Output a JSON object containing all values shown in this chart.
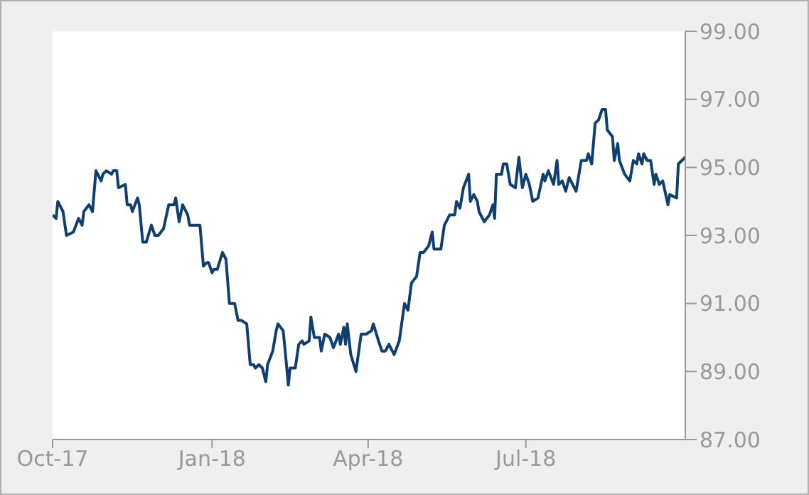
{
  "chart_data": {
    "type": "line",
    "xlim": [
      "2017-10-01",
      "2018-10-01"
    ],
    "xticks": [
      {
        "value": "2017-10-01",
        "label": "Oct-17"
      },
      {
        "value": "2018-01-01",
        "label": "Jan-18"
      },
      {
        "value": "2018-04-01",
        "label": "Apr-18"
      },
      {
        "value": "2018-07-01",
        "label": "Jul-18"
      }
    ],
    "ylim": [
      87,
      99
    ],
    "yticks": [
      {
        "value": 87,
        "label": "87.00"
      },
      {
        "value": 89,
        "label": "89.00"
      },
      {
        "value": 91,
        "label": "91.00"
      },
      {
        "value": 93,
        "label": "93.00"
      },
      {
        "value": 95,
        "label": "95.00"
      },
      {
        "value": 97,
        "label": "97.00"
      },
      {
        "value": 99,
        "label": "99.00"
      }
    ],
    "grid": false,
    "legend": false,
    "marker": "none",
    "line_style": "solid",
    "x": [
      "2017-10-01",
      "2017-10-03",
      "2017-10-04",
      "2017-10-07",
      "2017-10-09",
      "2017-10-13",
      "2017-10-16",
      "2017-10-18",
      "2017-10-19",
      "2017-10-22",
      "2017-10-24",
      "2017-10-26",
      "2017-10-29",
      "2017-10-30",
      "2017-11-01",
      "2017-11-04",
      "2017-11-05",
      "2017-11-07",
      "2017-11-08",
      "2017-11-12",
      "2017-11-13",
      "2017-11-15",
      "2017-11-16",
      "2017-11-19",
      "2017-11-20",
      "2017-11-22",
      "2017-11-24",
      "2017-11-27",
      "2017-11-29",
      "2017-12-01",
      "2017-12-04",
      "2017-12-07",
      "2017-12-10",
      "2017-12-11",
      "2017-12-13",
      "2017-12-15",
      "2017-12-18",
      "2017-12-19",
      "2017-12-23",
      "2017-12-25",
      "2017-12-27",
      "2017-12-29",
      "2017-12-30",
      "2018-01-01",
      "2018-01-02",
      "2018-01-04",
      "2018-01-07",
      "2018-01-09",
      "2018-01-11",
      "2018-01-14",
      "2018-01-16",
      "2018-01-18",
      "2018-01-21",
      "2018-01-23",
      "2018-01-25",
      "2018-01-26",
      "2018-01-28",
      "2018-01-30",
      "2018-02-01",
      "2018-02-02",
      "2018-02-05",
      "2018-02-07",
      "2018-02-08",
      "2018-02-11",
      "2018-02-12",
      "2018-02-14",
      "2018-02-15",
      "2018-02-18",
      "2018-02-20",
      "2018-02-22",
      "2018-02-23",
      "2018-02-26",
      "2018-02-27",
      "2018-03-01",
      "2018-03-04",
      "2018-03-05",
      "2018-03-07",
      "2018-03-10",
      "2018-03-12",
      "2018-03-15",
      "2018-03-16",
      "2018-03-18",
      "2018-03-19",
      "2018-03-20",
      "2018-03-22",
      "2018-03-25",
      "2018-03-28",
      "2018-03-31",
      "2018-04-03",
      "2018-04-04",
      "2018-04-07",
      "2018-04-09",
      "2018-04-11",
      "2018-04-13",
      "2018-04-16",
      "2018-04-19",
      "2018-04-22",
      "2018-04-24",
      "2018-04-26",
      "2018-04-29",
      "2018-05-01",
      "2018-05-03",
      "2018-05-06",
      "2018-05-08",
      "2018-05-09",
      "2018-05-13",
      "2018-05-15",
      "2018-05-18",
      "2018-05-21",
      "2018-05-22",
      "2018-05-24",
      "2018-05-26",
      "2018-05-29",
      "2018-05-30",
      "2018-06-01",
      "2018-06-03",
      "2018-06-04",
      "2018-06-07",
      "2018-06-10",
      "2018-06-12",
      "2018-06-13",
      "2018-06-14",
      "2018-06-17",
      "2018-06-18",
      "2018-06-20",
      "2018-06-22",
      "2018-06-25",
      "2018-06-27",
      "2018-06-29",
      "2018-07-01",
      "2018-07-03",
      "2018-07-05",
      "2018-07-08",
      "2018-07-11",
      "2018-07-12",
      "2018-07-14",
      "2018-07-17",
      "2018-07-19",
      "2018-07-20",
      "2018-07-22",
      "2018-07-24",
      "2018-07-26",
      "2018-07-28",
      "2018-07-30",
      "2018-08-02",
      "2018-08-05",
      "2018-08-06",
      "2018-08-08",
      "2018-08-10",
      "2018-08-12",
      "2018-08-14",
      "2018-08-16",
      "2018-08-17",
      "2018-08-20",
      "2018-08-21",
      "2018-08-23",
      "2018-08-24",
      "2018-08-27",
      "2018-08-30",
      "2018-09-01",
      "2018-09-03",
      "2018-09-04",
      "2018-09-06",
      "2018-09-07",
      "2018-09-09",
      "2018-09-11",
      "2018-09-13",
      "2018-09-14",
      "2018-09-16",
      "2018-09-18",
      "2018-09-21",
      "2018-09-22",
      "2018-09-26",
      "2018-09-27",
      "2018-10-01"
    ],
    "series": [
      {
        "color": "#0e3f70",
        "values": [
          93.6,
          93.5,
          94.0,
          93.7,
          93.0,
          93.1,
          93.5,
          93.3,
          93.7,
          93.9,
          93.7,
          94.9,
          94.6,
          94.8,
          94.9,
          94.8,
          94.9,
          94.9,
          94.4,
          94.5,
          93.9,
          93.9,
          93.7,
          94.1,
          93.9,
          92.8,
          92.8,
          93.3,
          93.0,
          93.0,
          93.2,
          93.9,
          93.9,
          94.1,
          93.4,
          93.9,
          93.6,
          93.3,
          93.3,
          93.3,
          92.1,
          92.2,
          92.2,
          91.9,
          92.0,
          92.0,
          92.5,
          92.3,
          91.0,
          91.0,
          90.5,
          90.5,
          90.4,
          89.2,
          89.2,
          89.1,
          89.2,
          89.1,
          88.7,
          89.2,
          89.6,
          90.2,
          90.4,
          90.2,
          89.7,
          88.6,
          89.1,
          89.1,
          89.8,
          89.9,
          89.8,
          89.9,
          90.6,
          90.0,
          90.0,
          89.6,
          90.1,
          90.0,
          89.7,
          90.1,
          89.8,
          90.3,
          89.8,
          90.4,
          89.5,
          89.0,
          90.1,
          90.1,
          90.2,
          90.4,
          89.9,
          89.6,
          89.6,
          89.8,
          89.5,
          89.9,
          91.0,
          90.8,
          91.6,
          91.8,
          92.5,
          92.5,
          92.7,
          93.1,
          92.6,
          92.6,
          93.3,
          93.6,
          93.6,
          94.0,
          93.8,
          94.4,
          94.8,
          94.0,
          94.2,
          94.0,
          93.7,
          93.4,
          93.6,
          93.9,
          93.5,
          94.8,
          94.8,
          95.1,
          95.1,
          94.5,
          94.4,
          95.3,
          94.4,
          94.8,
          94.5,
          94.0,
          94.1,
          94.8,
          94.6,
          94.9,
          94.5,
          95.2,
          94.5,
          94.6,
          94.3,
          94.7,
          94.5,
          94.3,
          95.2,
          95.2,
          95.4,
          95.1,
          96.3,
          96.4,
          96.7,
          96.7,
          96.1,
          95.9,
          95.2,
          95.7,
          95.2,
          94.8,
          94.6,
          95.2,
          95.1,
          95.4,
          95.1,
          95.4,
          95.2,
          95.2,
          94.5,
          94.8,
          94.5,
          94.6,
          93.9,
          94.2,
          94.1,
          95.1,
          95.3
        ]
      }
    ]
  }
}
